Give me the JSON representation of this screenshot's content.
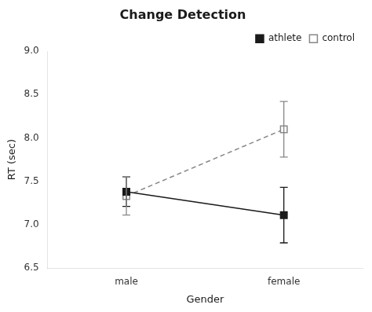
{
  "chart_data": {
    "type": "line",
    "title": "Change Detection",
    "x_label": "Gender",
    "y_label": "RT (sec)",
    "categories": [
      "male",
      "female"
    ],
    "series": [
      {
        "name": "athlete",
        "color": "#1a1a1a",
        "values": [
          7.38,
          7.11
        ],
        "errors": [
          0.17,
          0.32
        ],
        "marker": "square",
        "line_style": "solid"
      },
      {
        "name": "control",
        "color": "#888888",
        "values": [
          7.33,
          8.1
        ],
        "errors": [
          0.22,
          0.32
        ],
        "marker": "open square",
        "line_style": "dashed"
      }
    ],
    "ylim": [
      6.5,
      9.0
    ],
    "yticks": [
      6.5,
      {
        "value": 7.0,
        "label": "7.0"
      },
      7.5,
      {
        "value": 8.0,
        "label": "8.0"
      },
      8.5,
      {
        "value": 9.0,
        "label": "9.0"
      }
    ],
    "grid": false,
    "legend": "upper right"
  }
}
